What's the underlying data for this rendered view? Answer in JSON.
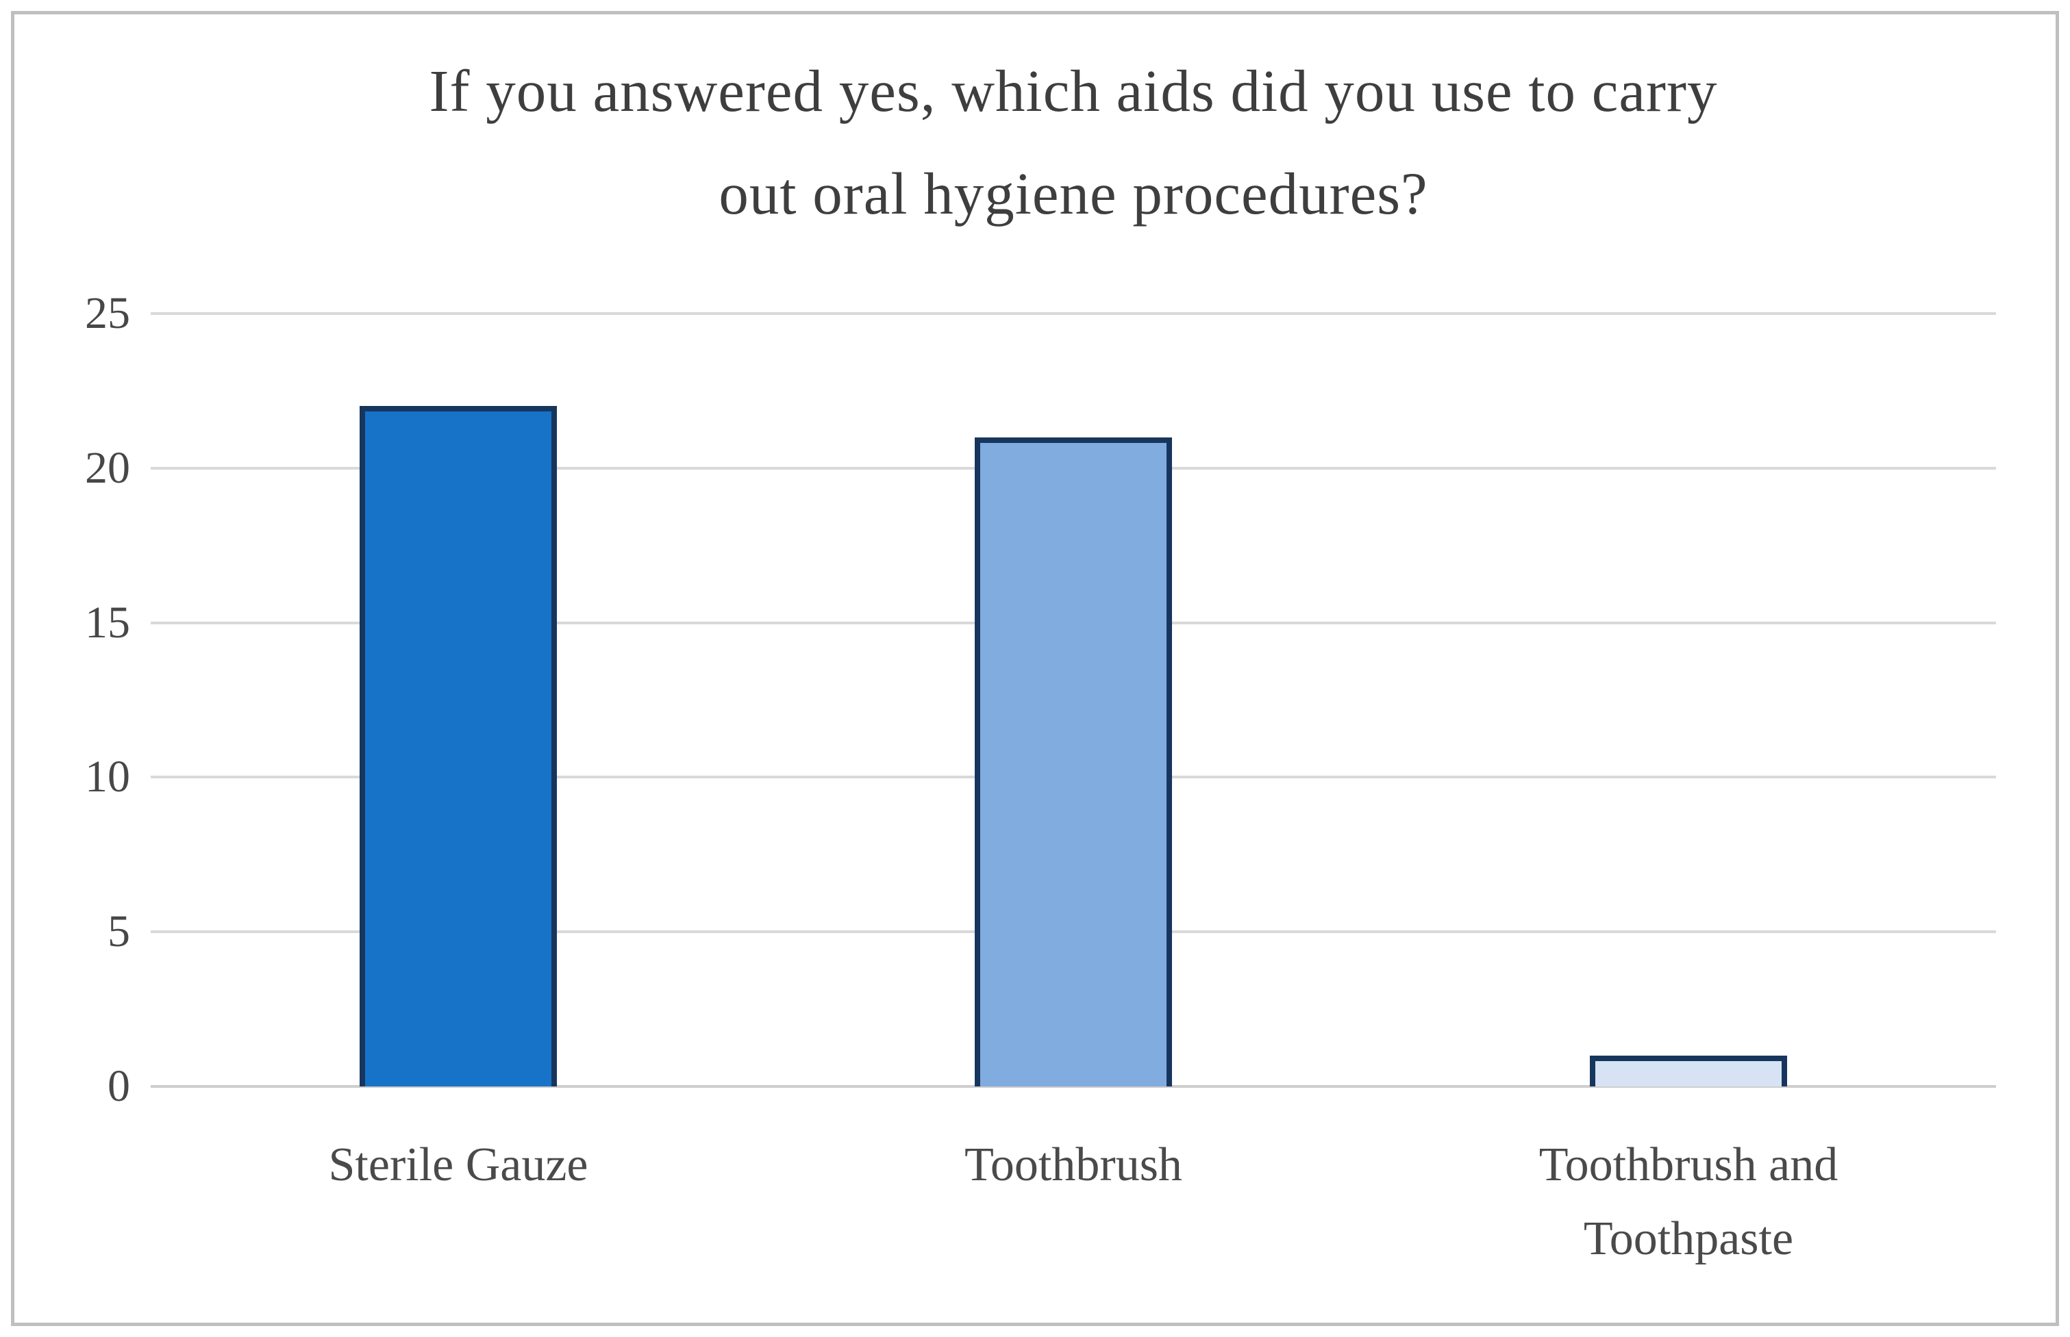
{
  "chart_data": {
    "type": "bar",
    "title": "If you answered yes, which aids did you use to carry out oral hygiene procedures?",
    "title_lines": [
      "If you answered yes, which aids did you use to carry",
      "out oral hygiene procedures?"
    ],
    "categories": [
      "Sterile Gauze",
      "Toothbrush",
      "Toothbrush and Toothpaste"
    ],
    "values": [
      22,
      21,
      1
    ],
    "bar_colors": [
      "#1673c8",
      "#81ace0",
      "#d7e3f4"
    ],
    "bar_border_color": "#17365d",
    "yticks": [
      0,
      5,
      10,
      15,
      20,
      25
    ],
    "ylim": [
      0,
      25
    ],
    "xlabel": "",
    "ylabel": "",
    "legend": "none",
    "grid": "horizontal",
    "gridline_color": "#d9d9d9",
    "axis_line_color": "#cfcdcd",
    "title_color": "#3e3e3e",
    "tick_label_color": "#474747",
    "frame_border_color": "#bfbfbf"
  }
}
